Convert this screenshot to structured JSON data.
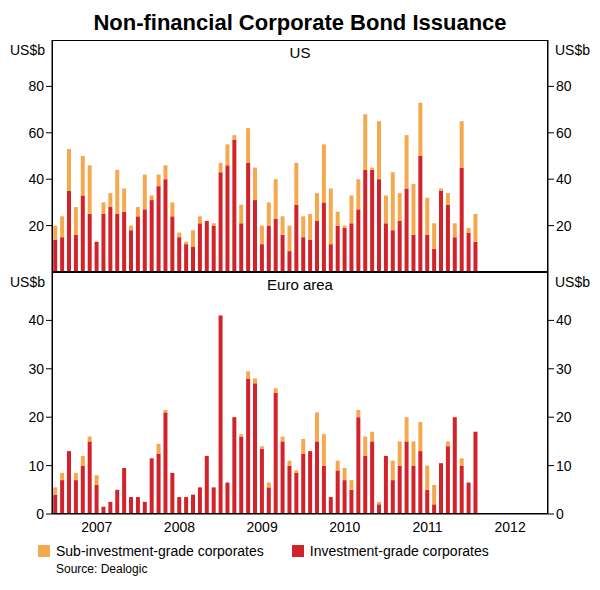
{
  "title": "Non-financial Corporate Bond Issuance",
  "source": "Source: Dealogic",
  "legend": "bottom",
  "chart_data": [
    {
      "type": "bar",
      "title": "US",
      "y_label": "US$b",
      "stacked": true,
      "grid": false,
      "categories": [
        null,
        null,
        null,
        null,
        null,
        null,
        "2007",
        null,
        null,
        null,
        null,
        null,
        null,
        null,
        null,
        null,
        null,
        null,
        "2008",
        null,
        null,
        null,
        null,
        null,
        null,
        null,
        null,
        null,
        null,
        null,
        "2009",
        null,
        null,
        null,
        null,
        null,
        null,
        null,
        null,
        null,
        null,
        null,
        "2010",
        null,
        null,
        null,
        null,
        null,
        null,
        null,
        null,
        null,
        null,
        null,
        "2011",
        null,
        null,
        null,
        null,
        null,
        null,
        null,
        null,
        null,
        null,
        null,
        "2012",
        null,
        null,
        null,
        null,
        null
      ],
      "ylim": [
        0,
        100
      ],
      "yticks": [
        20,
        40,
        60,
        80
      ],
      "series": [
        {
          "name": "Sub-investment-grade corporates",
          "color": "#f5a94e",
          "values": [
            6,
            9,
            18,
            12,
            17,
            21,
            0,
            5,
            6,
            19,
            10,
            2,
            4,
            15,
            2,
            5,
            6,
            6,
            2,
            1,
            7,
            3,
            0,
            1,
            4,
            9,
            2,
            8,
            15,
            14,
            8,
            10,
            17,
            8,
            11,
            18,
            9,
            11,
            12,
            25,
            24,
            6,
            1,
            12,
            13,
            24,
            1,
            25,
            12,
            25,
            12,
            23,
            22,
            23,
            16,
            11,
            1,
            5,
            6,
            20,
            2,
            12,
            null,
            null,
            null,
            null,
            null,
            null,
            null,
            null,
            null,
            null
          ]
        },
        {
          "name": "Investment-grade corporates",
          "color": "#d2232a",
          "values": [
            14,
            15,
            35,
            16,
            33,
            25,
            13,
            25,
            28,
            25,
            26,
            18,
            24,
            27,
            31,
            37,
            40,
            24,
            15,
            12,
            11,
            21,
            22,
            20,
            43,
            46,
            57,
            21,
            47,
            31,
            12,
            20,
            23,
            16,
            9,
            29,
            15,
            14,
            22,
            30,
            12,
            20,
            19,
            21,
            27,
            44,
            44,
            40,
            21,
            18,
            22,
            36,
            16,
            50,
            16,
            10,
            35,
            29,
            15,
            45,
            17,
            13,
            null,
            null,
            null,
            null,
            null,
            null,
            null,
            null,
            null,
            null
          ]
        }
      ]
    },
    {
      "type": "bar",
      "title": "Euro area",
      "y_label": "US$b",
      "stacked": true,
      "grid": false,
      "categories": [
        null,
        null,
        null,
        null,
        null,
        null,
        "2007",
        null,
        null,
        null,
        null,
        null,
        null,
        null,
        null,
        null,
        null,
        null,
        "2008",
        null,
        null,
        null,
        null,
        null,
        null,
        null,
        null,
        null,
        null,
        null,
        "2009",
        null,
        null,
        null,
        null,
        null,
        null,
        null,
        null,
        null,
        null,
        null,
        "2010",
        null,
        null,
        null,
        null,
        null,
        null,
        null,
        null,
        null,
        null,
        null,
        "2011",
        null,
        null,
        null,
        null,
        null,
        null,
        null,
        null,
        null,
        null,
        null,
        "2012",
        null,
        null,
        null,
        null,
        null
      ],
      "ylim": [
        0,
        50
      ],
      "yticks": [
        0,
        10,
        20,
        30,
        40
      ],
      "series": [
        {
          "name": "Sub-investment-grade corporates",
          "color": "#f5a94e",
          "values": [
            1.5,
            1.5,
            0,
            1.5,
            2,
            1,
            2,
            0,
            0,
            0,
            0,
            0,
            0,
            0,
            0,
            2,
            0.5,
            0,
            0,
            0,
            0,
            0,
            0,
            0,
            0,
            0,
            0,
            0.5,
            1.5,
            1,
            0.5,
            1,
            1,
            1,
            1,
            0.5,
            3,
            0,
            6,
            6.5,
            0,
            2,
            2.5,
            2,
            1.5,
            4,
            2,
            0.5,
            0,
            4,
            5,
            5,
            5,
            6,
            5,
            4,
            0,
            1,
            0,
            1.5,
            0,
            0,
            null,
            null,
            null,
            null,
            null,
            null,
            null,
            null,
            null,
            null
          ]
        },
        {
          "name": "Investment-grade corporates",
          "color": "#d2232a",
          "values": [
            4,
            7,
            13,
            7,
            10,
            15,
            6,
            1.5,
            2.5,
            5,
            9.5,
            3.5,
            3.5,
            2.5,
            11.5,
            12.5,
            21,
            8.5,
            3.5,
            3.5,
            4,
            5.5,
            12,
            5.5,
            41,
            6.5,
            20,
            16,
            28,
            27,
            13.5,
            5.5,
            25,
            15,
            10,
            8.5,
            12.5,
            13,
            15,
            10,
            3.5,
            9,
            7,
            5,
            20,
            12,
            15,
            2,
            12,
            7,
            10,
            15,
            10,
            13,
            5,
            2,
            10.5,
            14,
            20,
            10,
            6.5,
            17,
            null,
            null,
            null,
            null,
            null,
            null,
            null,
            null,
            null,
            null
          ]
        }
      ]
    }
  ]
}
